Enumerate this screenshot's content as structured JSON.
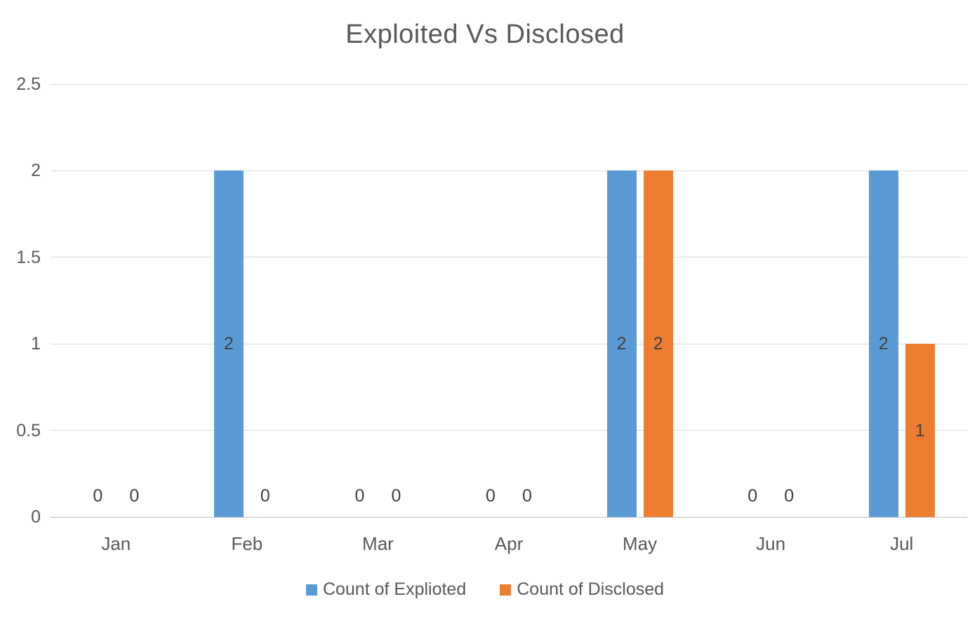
{
  "chart_data": {
    "type": "bar",
    "title": "Exploited Vs Disclosed",
    "categories": [
      "Jan",
      "Feb",
      "Mar",
      "Apr",
      "May",
      "Jun",
      "Jul"
    ],
    "series": [
      {
        "name": "Count of Explioted",
        "color": "#5B9BD5",
        "values": [
          0,
          2,
          0,
          0,
          2,
          0,
          2
        ]
      },
      {
        "name": "Count of Disclosed",
        "color": "#ED7D31",
        "values": [
          0,
          0,
          0,
          0,
          2,
          0,
          1
        ]
      }
    ],
    "ylim": [
      0,
      2.5
    ],
    "yticks": [
      0,
      0.5,
      1,
      1.5,
      2,
      2.5
    ],
    "grid": true,
    "data_labels": true,
    "legend_position": "bottom",
    "colors": {
      "title_text": "#595959",
      "axis_text": "#595959",
      "data_label_text": "#404040",
      "gridline": "#d9d9d9",
      "baseline": "#bfbfbf"
    }
  }
}
